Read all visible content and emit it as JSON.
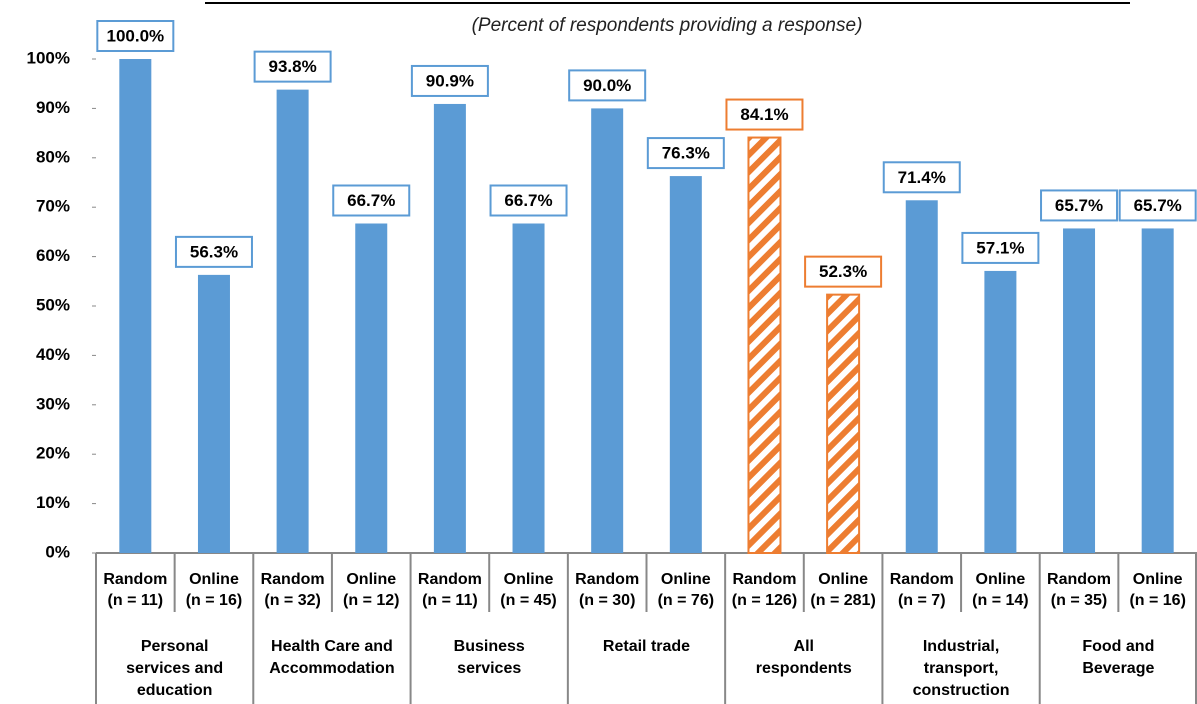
{
  "chart_data": {
    "type": "bar",
    "subtitle": "(Percent of respondents providing a response)",
    "categories": [
      "Random",
      "Online",
      "Random",
      "Online",
      "Random",
      "Online",
      "Random",
      "Online",
      "Random",
      "Online",
      "Random",
      "Online",
      "Random",
      "Online"
    ],
    "sample_sizes": [
      "(n = 11)",
      "(n = 16)",
      "(n = 32)",
      "(n = 12)",
      "(n = 11)",
      "(n = 45)",
      "(n = 30)",
      "(n = 76)",
      "(n = 126)",
      "(n = 281)",
      "(n = 7)",
      "(n = 14)",
      "(n = 35)",
      "(n = 16)"
    ],
    "groups": [
      [
        "Personal",
        "services and",
        "education"
      ],
      [
        "Health Care and",
        "Accommodation"
      ],
      [
        "Business",
        "services"
      ],
      [
        "Retail trade"
      ],
      [
        "All",
        "respondents"
      ],
      [
        "Industrial,",
        "transport,",
        "construction"
      ],
      [
        "Food and",
        "Beverage"
      ]
    ],
    "values": [
      100.0,
      56.3,
      93.8,
      66.7,
      90.9,
      66.7,
      90.0,
      76.3,
      84.1,
      52.3,
      71.4,
      57.1,
      65.7,
      65.7
    ],
    "value_labels": [
      "100.0%",
      "56.3%",
      "93.8%",
      "66.7%",
      "90.9%",
      "66.7%",
      "90.0%",
      "76.3%",
      "84.1%",
      "52.3%",
      "71.4%",
      "57.1%",
      "65.7%",
      "65.7%"
    ],
    "colors": [
      "#5b9bd5",
      "#5b9bd5",
      "#5b9bd5",
      "#5b9bd5",
      "#5b9bd5",
      "#5b9bd5",
      "#5b9bd5",
      "#5b9bd5",
      "#ed7d31",
      "#ed7d31",
      "#5b9bd5",
      "#5b9bd5",
      "#5b9bd5",
      "#5b9bd5"
    ],
    "hatched": [
      false,
      false,
      false,
      false,
      false,
      false,
      false,
      false,
      true,
      true,
      false,
      false,
      false,
      false
    ],
    "ylim": [
      0,
      100
    ],
    "yticks": [
      {
        "value": 0,
        "label": "0%"
      },
      {
        "value": 10,
        "label": "10%"
      },
      {
        "value": 20,
        "label": "20%"
      },
      {
        "value": 30,
        "label": "30%"
      },
      {
        "value": 40,
        "label": "40%"
      },
      {
        "value": 50,
        "label": "50%"
      },
      {
        "value": 60,
        "label": "60%"
      },
      {
        "value": 70,
        "label": "70%"
      },
      {
        "value": 80,
        "label": "80%"
      },
      {
        "value": 90,
        "label": "90%"
      },
      {
        "value": 100,
        "label": "100%"
      }
    ]
  }
}
